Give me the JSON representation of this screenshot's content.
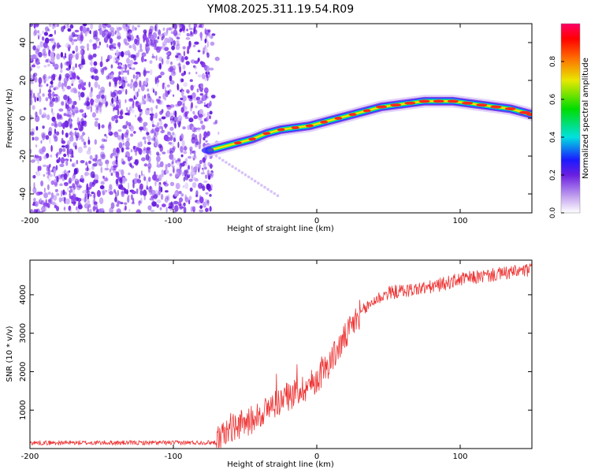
{
  "title": "YM08.2025.311.19.54.R09",
  "chart_data": [
    {
      "type": "heatmap",
      "title": "YM08.2025.311.19.54.R09",
      "xlabel": "Height of straight line (km)",
      "ylabel": "Frequency (Hz)",
      "xlim": [
        -200,
        150
      ],
      "ylim": [
        -50,
        50
      ],
      "x_ticks": [
        -200,
        -100,
        0,
        100
      ],
      "y_ticks": [
        -40,
        -20,
        0,
        20,
        40
      ],
      "noise_region_x": [
        -200,
        -73
      ],
      "meteor_trace": {
        "x": [
          -75,
          -65,
          -55,
          -45,
          -35,
          -25,
          -15,
          -5,
          5,
          15,
          25,
          35,
          45,
          55,
          65,
          75,
          85,
          95,
          105,
          115,
          125,
          135,
          145,
          150
        ],
        "y": [
          -17,
          -15,
          -13,
          -11,
          -8,
          -6,
          -5,
          -4,
          -2,
          0,
          2,
          4,
          6,
          7,
          8,
          9,
          9,
          9,
          8,
          7,
          6,
          5,
          3,
          2
        ]
      },
      "colorbar": {
        "label": "Normalized spectral amplitude",
        "range": [
          0,
          1
        ],
        "ticks": [
          "0.0",
          "0.2",
          "0.4",
          "0.6",
          "0.8"
        ]
      }
    },
    {
      "type": "line",
      "xlabel": "Height of straight line (km)",
      "ylabel": "SNR (10 * v/v)",
      "xlim": [
        -200,
        150
      ],
      "ylim": [
        0,
        4900
      ],
      "x_ticks": [
        -200,
        -100,
        0,
        100
      ],
      "y_ticks": [
        1000,
        2000,
        3000,
        4000
      ],
      "color": "#ee3333",
      "series": [
        {
          "name": "SNR",
          "x": [
            -200,
            -150,
            -100,
            -70,
            -65,
            -60,
            -55,
            -50,
            -45,
            -40,
            -35,
            -30,
            -25,
            -20,
            -15,
            -10,
            -5,
            0,
            5,
            10,
            15,
            20,
            25,
            30,
            40,
            50,
            60,
            70,
            80,
            90,
            100,
            110,
            120,
            130,
            140,
            150
          ],
          "values": [
            150,
            150,
            150,
            160,
            350,
            550,
            600,
            650,
            750,
            900,
            1000,
            1150,
            1250,
            1350,
            1450,
            1550,
            1650,
            1800,
            2050,
            2300,
            2600,
            2900,
            3200,
            3500,
            3850,
            4050,
            4100,
            4150,
            4200,
            4300,
            4400,
            4450,
            4500,
            4550,
            4600,
            4650
          ]
        }
      ]
    }
  ]
}
